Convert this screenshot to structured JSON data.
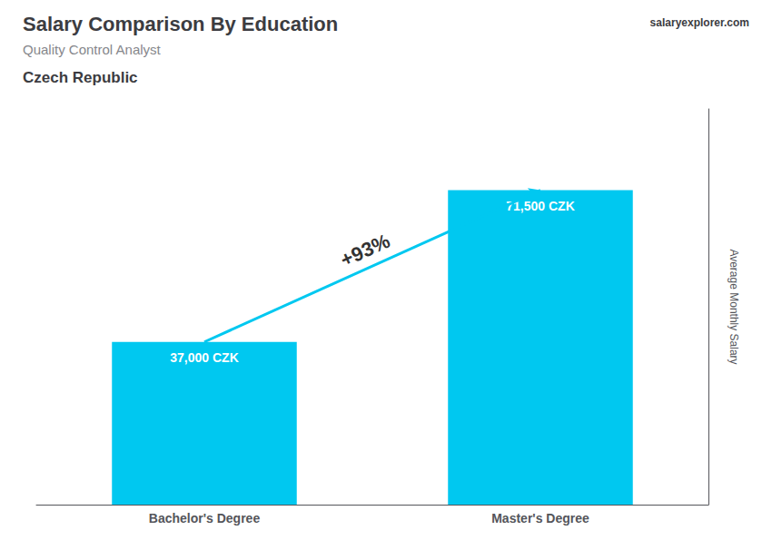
{
  "chart_data": {
    "type": "bar",
    "title": "Salary Comparison By Education",
    "subtitle": "Quality Control Analyst",
    "ylabel": "Average Monthly Salary",
    "categories": [
      "Bachelor's Degree",
      "Master's Degree"
    ],
    "values": [
      37000,
      71500
    ],
    "value_labels": [
      "37,000 CZK",
      "71,500 CZK"
    ],
    "data_labels": true,
    "color": "#00c8f0",
    "ylim": [
      0,
      90000
    ],
    "tick_labels": "x",
    "grid": false,
    "annotations": [
      {
        "text": "Czech Republic"
      },
      {
        "text": "salaryexplorer.com"
      },
      {
        "text": "+93%",
        "from": "Bachelor's Degree",
        "to": "Master's Degree"
      }
    ]
  }
}
